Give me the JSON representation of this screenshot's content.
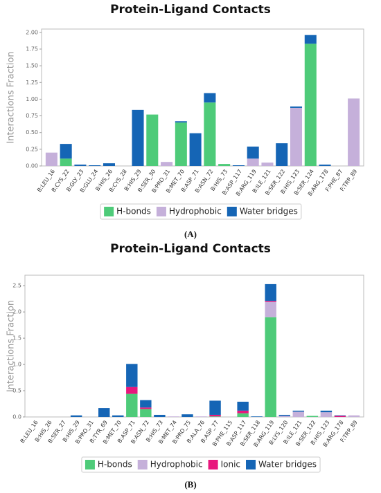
{
  "chart_data": [
    {
      "type": "bar",
      "stacked": true,
      "title": "Protein-Ligand Contacts",
      "y_label": "Interactions Fraction",
      "caption": "(A)",
      "categories": [
        "B:LEU_16",
        "B:CYS_22",
        "B:GLY_23",
        "B:GLU_24",
        "B:HIS_26",
        "B:CYS_28",
        "B:HIS_29",
        "B:SER_30",
        "B:PRO_31",
        "B:MET_70",
        "B:ASP_71",
        "B:ASN_72",
        "B:HIS_73",
        "B:ASP_117",
        "B:ARG_119",
        "B:ILE_121",
        "B:SER_122",
        "B:HIS_123",
        "B:SER_124",
        "B:ARG_178",
        "F:PHE_87",
        "F:TRP_89"
      ],
      "series": [
        {
          "name": "H-bonds",
          "color": "#4ecb79",
          "values": [
            0,
            0.11,
            0,
            0,
            0,
            0,
            0,
            0.77,
            0,
            0.65,
            0,
            0.95,
            0.03,
            0,
            0,
            0,
            0,
            0,
            1.83,
            0,
            0,
            0
          ]
        },
        {
          "name": "Hydrophobic",
          "color": "#c5b0da",
          "values": [
            0.2,
            0,
            0,
            0,
            0,
            0,
            0,
            0,
            0.06,
            0,
            0,
            0,
            0,
            0,
            0.11,
            0.05,
            0,
            0.87,
            0,
            0,
            0,
            1.01
          ]
        },
        {
          "name": "Water bridges",
          "color": "#1565b5",
          "values": [
            0,
            0.22,
            0.02,
            0.01,
            0.04,
            0,
            0.84,
            0,
            0,
            0.02,
            0.49,
            0.14,
            0,
            0.01,
            0.18,
            0,
            0.34,
            0.02,
            0.13,
            0.02,
            0,
            0
          ]
        }
      ],
      "ylim": [
        0,
        2.05
      ],
      "yticks": [
        {
          "value": 0,
          "label": "0.00"
        },
        0.25,
        {
          "value": 0.5,
          "label": "0.50"
        },
        0.75,
        {
          "value": 1,
          "label": "1.00"
        },
        1.25,
        {
          "value": 1.5,
          "label": "1.50"
        },
        1.75,
        {
          "value": 2,
          "label": "2.00"
        }
      ]
    },
    {
      "type": "bar",
      "stacked": true,
      "title": "Protein-Ligand Contacts",
      "y_label": "Interactions Fraction",
      "caption": "(B)",
      "categories": [
        "B:LEU_16",
        "B:HIS_26",
        "B:SER_27",
        "B:HIS_29",
        "B:PRO_31",
        "B:TYR_69",
        "B:MET_70",
        "B:ASP_71",
        "B:ASN_72",
        "B:HIS_73",
        "B:MET_74",
        "B:PRO_75",
        "B:ALA_76",
        "B:ASP_77",
        "B:PHE_115",
        "B:ASP_117",
        "B:SER_118",
        "B:ARG_119",
        "B:LYS_120",
        "B:ILE_121",
        "B:SER_122",
        "B:HIS_123",
        "B:ARG_178",
        "F:TRP_89"
      ],
      "series": [
        {
          "name": "H-bonds",
          "color": "#4ecb79",
          "values": [
            0,
            0,
            0,
            0,
            0,
            0,
            0,
            0.44,
            0.15,
            0,
            0,
            0,
            0,
            0.01,
            0,
            0.07,
            0,
            1.9,
            0,
            0,
            0.02,
            0,
            0,
            0
          ]
        },
        {
          "name": "Hydrophobic",
          "color": "#c5b0da",
          "values": [
            0,
            0,
            0,
            0,
            0,
            0,
            0,
            0,
            0,
            0,
            0.01,
            0,
            0.01,
            0,
            0,
            0,
            0,
            0.29,
            0.02,
            0.1,
            0,
            0.09,
            0,
            0.03
          ]
        },
        {
          "name": "Ionic",
          "color": "#e8177d",
          "values": [
            0,
            0,
            0,
            0,
            0,
            0,
            0,
            0.13,
            0.03,
            0,
            0,
            0,
            0,
            0.03,
            0,
            0.05,
            0,
            0.02,
            0,
            0,
            0,
            0,
            0.02,
            0
          ]
        },
        {
          "name": "Water bridges",
          "color": "#1565b5",
          "values": [
            0,
            0,
            0,
            0.03,
            0,
            0.17,
            0.03,
            0.44,
            0.14,
            0.04,
            0,
            0.05,
            0,
            0.27,
            0,
            0.17,
            0.01,
            0.32,
            0.02,
            0.02,
            0,
            0.03,
            0.01,
            0
          ]
        }
      ],
      "ylim": [
        0,
        2.7
      ],
      "yticks": [
        {
          "value": 0,
          "label": "0.0"
        },
        0.5,
        {
          "value": 1,
          "label": "1.0"
        },
        1.5,
        {
          "value": 2,
          "label": "2.0"
        },
        2.5
      ]
    }
  ]
}
